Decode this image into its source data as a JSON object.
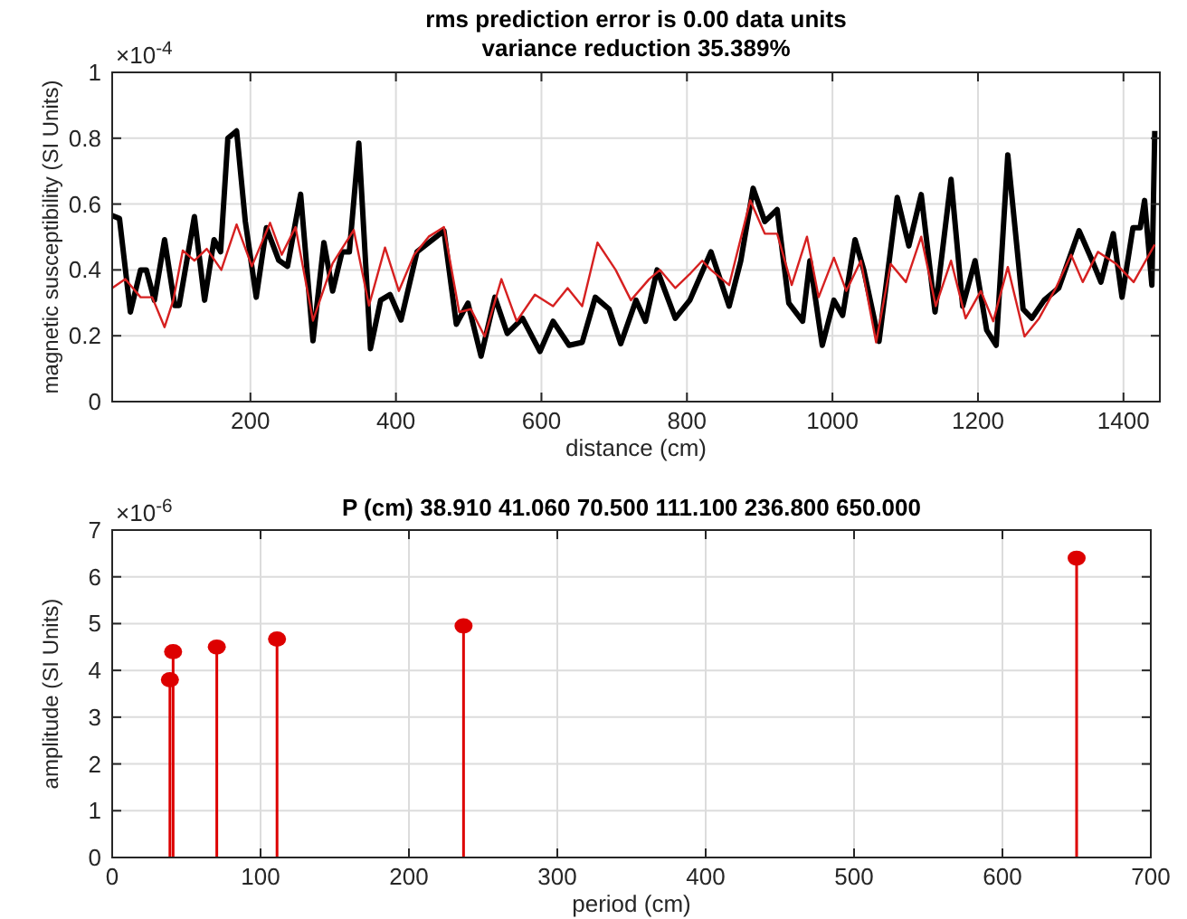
{
  "chart_data": [
    {
      "type": "line",
      "title": "rms prediction error is  0.00 data units",
      "subtitle": "variance reduction 35.389%",
      "xlabel": "distance (cm)",
      "ylabel": "magnetic susceptibility (SI Units)",
      "annotations": [
        "×10$^{-4}$"
      ],
      "xlim": [
        10,
        1450
      ],
      "ylim": [
        0,
        1
      ],
      "xticks": [
        200,
        400,
        600,
        800,
        1000,
        1200,
        1400
      ],
      "yticks": [
        0,
        0.2,
        0.4,
        0.6,
        0.8,
        1
      ],
      "grid": true,
      "series": [
        {
          "color": "#000000",
          "x": [
            10,
            20,
            35,
            49,
            57,
            68,
            82,
            96,
            102,
            123,
            137,
            150,
            159,
            169,
            181,
            193,
            208,
            222,
            239,
            251,
            269,
            286,
            301,
            313,
            326,
            336,
            349,
            365,
            379,
            392,
            407,
            429,
            466,
            483,
            499,
            517,
            536,
            553,
            574,
            598,
            616,
            638,
            656,
            674,
            693,
            709,
            730,
            743,
            759,
            784,
            804,
            833,
            858,
            874,
            891,
            907,
            924,
            940,
            959,
            969,
            986,
            1002,
            1014,
            1031,
            1043,
            1064,
            1089,
            1105,
            1122,
            1141,
            1163,
            1179,
            1196,
            1212,
            1225,
            1241,
            1262,
            1274,
            1291,
            1311,
            1339,
            1357,
            1369,
            1386,
            1398,
            1413,
            1423,
            1429,
            1439,
            1443
          ],
          "values": [
            0.565,
            0.556,
            0.272,
            0.4,
            0.4,
            0.308,
            0.492,
            0.292,
            0.292,
            0.562,
            0.308,
            0.492,
            0.455,
            0.8,
            0.822,
            0.547,
            0.317,
            0.528,
            0.429,
            0.411,
            0.63,
            0.185,
            0.483,
            0.336,
            0.455,
            0.455,
            0.785,
            0.161,
            0.308,
            0.325,
            0.248,
            0.455,
            0.519,
            0.235,
            0.299,
            0.138,
            0.317,
            0.207,
            0.253,
            0.152,
            0.244,
            0.171,
            0.18,
            0.317,
            0.281,
            0.176,
            0.308,
            0.244,
            0.4,
            0.253,
            0.308,
            0.455,
            0.29,
            0.428,
            0.648,
            0.547,
            0.583,
            0.299,
            0.244,
            0.428,
            0.171,
            0.308,
            0.262,
            0.492,
            0.4,
            0.183,
            0.62,
            0.473,
            0.629,
            0.272,
            0.675,
            0.29,
            0.428,
            0.217,
            0.171,
            0.749,
            0.281,
            0.253,
            0.308,
            0.345,
            0.519,
            0.428,
            0.363,
            0.51,
            0.317,
            0.528,
            0.528,
            0.611,
            0.354,
            0.822
          ]
        },
        {
          "color": "#d62020",
          "x": [
            10,
            28,
            49,
            65,
            82,
            94,
            107,
            123,
            140,
            160,
            181,
            202,
            227,
            243,
            262,
            286,
            313,
            342,
            363,
            385,
            404,
            425,
            445,
            466,
            487,
            503,
            522,
            545,
            566,
            591,
            616,
            636,
            656,
            677,
            702,
            723,
            748,
            763,
            784,
            805,
            821,
            833,
            858,
            887,
            907,
            924,
            944,
            965,
            981,
            1002,
            1019,
            1039,
            1060,
            1080,
            1101,
            1122,
            1142,
            1163,
            1183,
            1204,
            1221,
            1241,
            1264,
            1284,
            1307,
            1328,
            1344,
            1365,
            1390,
            1414,
            1443
          ],
          "values": [
            0.345,
            0.372,
            0.317,
            0.317,
            0.226,
            0.308,
            0.459,
            0.428,
            0.464,
            0.4,
            0.538,
            0.411,
            0.543,
            0.446,
            0.53,
            0.246,
            0.42,
            0.521,
            0.292,
            0.468,
            0.336,
            0.446,
            0.501,
            0.53,
            0.272,
            0.281,
            0.198,
            0.372,
            0.244,
            0.325,
            0.29,
            0.345,
            0.29,
            0.483,
            0.4,
            0.308,
            0.372,
            0.4,
            0.345,
            0.39,
            0.428,
            0.4,
            0.354,
            0.611,
            0.51,
            0.51,
            0.354,
            0.501,
            0.317,
            0.437,
            0.336,
            0.428,
            0.18,
            0.418,
            0.363,
            0.501,
            0.29,
            0.428,
            0.253,
            0.336,
            0.244,
            0.409,
            0.198,
            0.253,
            0.345,
            0.446,
            0.363,
            0.455,
            0.418,
            0.363,
            0.477
          ]
        }
      ]
    },
    {
      "type": "lollipop",
      "title": "P (cm) 38.910  41.060  70.500  111.100  236.800  650.000",
      "xlabel": "period (cm)",
      "ylabel": "amplitude (SI Units)",
      "annotations": [
        "×10$^{-6}$"
      ],
      "x": [
        38.91,
        41.06,
        70.5,
        111.1,
        236.8,
        650
      ],
      "values": [
        3.8,
        4.4,
        4.5,
        4.67,
        4.95,
        6.4
      ],
      "color": "#dd0000",
      "marker": "circle",
      "xlim": [
        0,
        700
      ],
      "ylim": [
        0,
        7
      ],
      "xticks": [
        0,
        100,
        200,
        300,
        400,
        500,
        600,
        700
      ],
      "yticks": [
        0,
        1,
        2,
        3,
        4,
        5,
        6,
        7
      ],
      "grid": true
    }
  ]
}
